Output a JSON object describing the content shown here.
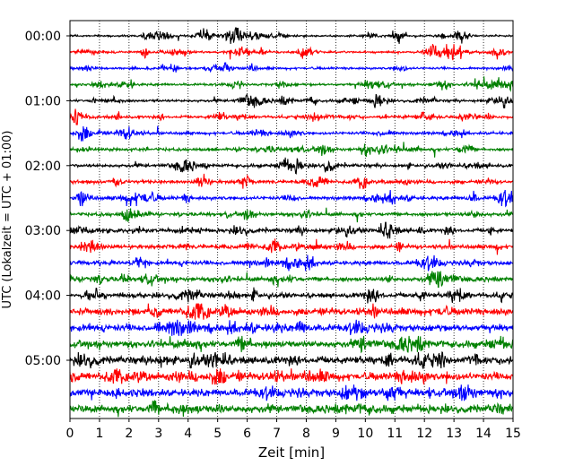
{
  "chart_data": {
    "type": "line",
    "title": "",
    "xlabel": "Zeit  [min]",
    "ylabel": "UTC (Lokalzeit = UTC + 01:00)",
    "xlim": [
      0,
      15
    ],
    "x_ticks": [
      "0",
      "1",
      "2",
      "3",
      "4",
      "5",
      "6",
      "7",
      "8",
      "9",
      "10",
      "11",
      "12",
      "13",
      "14",
      "15"
    ],
    "y_ticks": [
      "00:00",
      "01:00",
      "02:00",
      "03:00",
      "04:00",
      "05:00"
    ],
    "trace_interval_min": 15,
    "trace_start_offsets_min": [
      0,
      15,
      30,
      45,
      60,
      75,
      90,
      105,
      120,
      135,
      150,
      165,
      180,
      195,
      210,
      225,
      240,
      255,
      270,
      285,
      300,
      315,
      330,
      345
    ],
    "grid": "vertical dotted",
    "colors": [
      "#000000",
      "#ff0000",
      "#0000ff",
      "#008000"
    ]
  }
}
